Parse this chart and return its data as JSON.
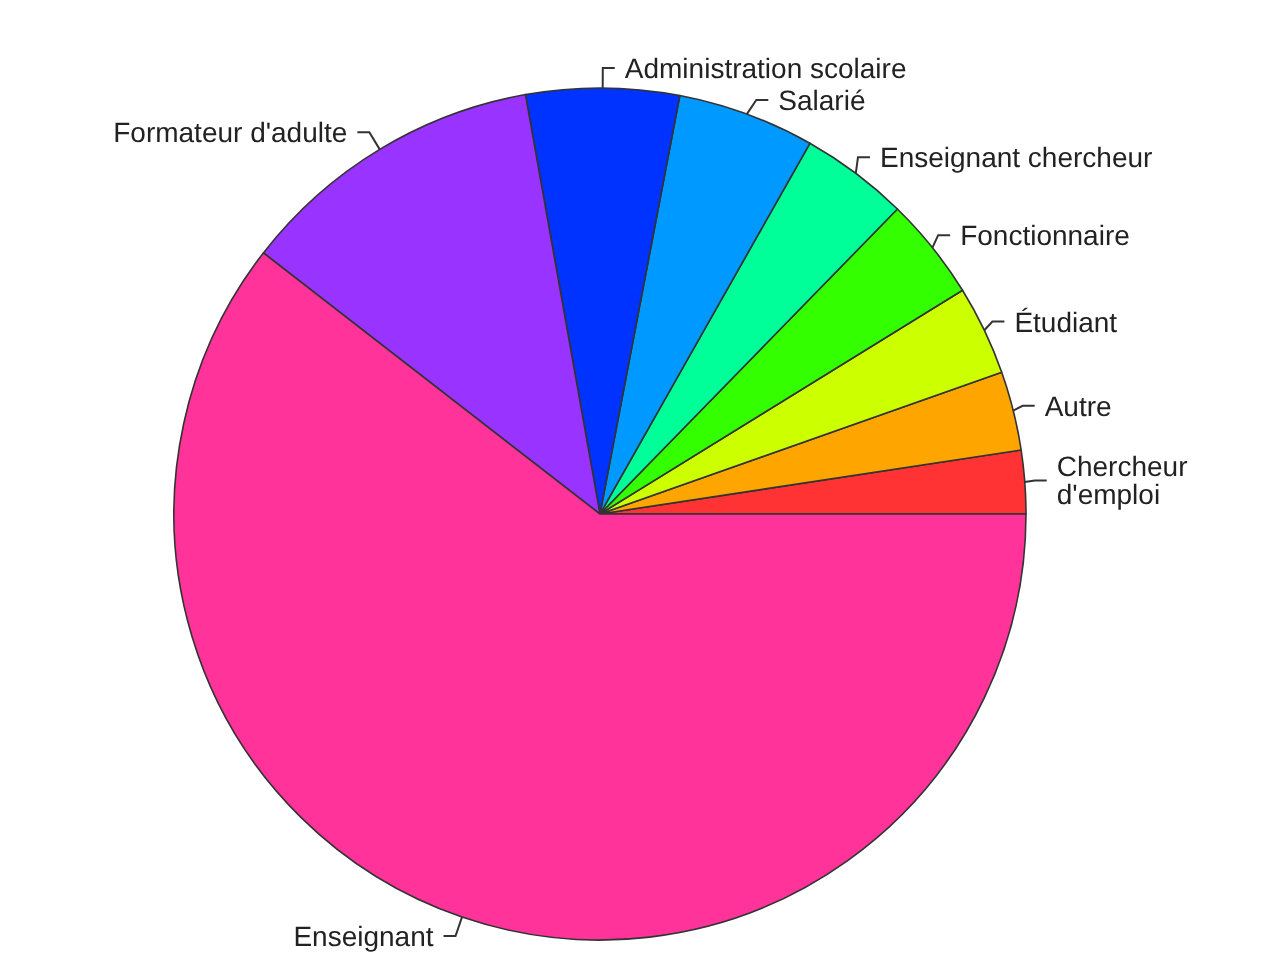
{
  "chart_data": {
    "type": "pie",
    "categories": [
      "Chercheur d'emploi",
      "Autre",
      "Étudiant",
      "Fonctionnaire",
      "Enseignant chercheur",
      "Salarié",
      "Administration scolaire",
      "Formateur d'adulte",
      "Enseignant"
    ],
    "values": [
      2.4,
      3.0,
      3.4,
      3.9,
      4.1,
      5.2,
      5.8,
      11.7,
      60.5
    ],
    "colors": [
      "#ff3333",
      "#ffa500",
      "#ccff00",
      "#33ff00",
      "#00ff99",
      "#0099ff",
      "#0033ff",
      "#9933ff",
      "#ff3399"
    ],
    "legend": false
  }
}
